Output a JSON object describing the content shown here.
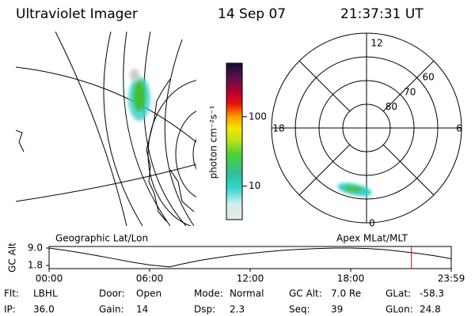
{
  "header": {
    "title": "Ultraviolet Imager",
    "date": "14 Sep 07",
    "time": "21:37:31 UT"
  },
  "colorbar": {
    "label": "photon cm⁻²s⁻¹",
    "log": true,
    "lim": [
      3.3,
      590
    ],
    "ticks": [
      10,
      100
    ]
  },
  "polar_map": {
    "lat_lim": [
      50,
      90
    ],
    "rings": [
      60,
      70,
      80
    ],
    "mlt_labels": [
      "12",
      "18",
      "6",
      "0"
    ]
  },
  "altitude_plot": {
    "left_label": "Geographic Lat/Lon",
    "right_label": "Apex MLat/MLT",
    "y_label": "GC Alt",
    "ylim": [
      0.5,
      9.65
    ],
    "yticks": [
      {
        "value": 9,
        "label": "9.0"
      },
      1.8
    ],
    "xlim": [
      0,
      24
    ],
    "xticks": [
      {
        "value": 0,
        "label": "00:00"
      },
      {
        "value": 6,
        "label": "06:00"
      },
      {
        "value": 12,
        "label": "12:00"
      },
      {
        "value": 18,
        "label": "18:00"
      },
      {
        "value": 24,
        "label": "23:59"
      }
    ],
    "x": [
      0,
      1,
      2,
      3,
      4,
      5,
      6,
      7.2,
      8,
      9,
      10,
      11,
      12,
      13,
      14,
      15,
      16,
      17,
      18,
      19,
      20,
      21,
      22,
      23,
      24
    ],
    "values": [
      9.0,
      8.0,
      6.9,
      5.7,
      4.4,
      3.1,
      2.0,
      1.2,
      2.5,
      3.9,
      5.0,
      6.0,
      6.8,
      7.5,
      8.1,
      8.5,
      8.8,
      9.0,
      9.0,
      8.8,
      8.4,
      7.6,
      6.8,
      5.8,
      4.6
    ],
    "cursor": 21.625,
    "cursor_color": "#e00000"
  },
  "info": [
    [
      {
        "label": "Flt:",
        "value": "LBHL"
      },
      {
        "label": "Door:",
        "value": "Open"
      },
      {
        "label": "Mode:",
        "value": "Normal"
      },
      {
        "label": "GC Alt:",
        "value": "7.0 Re"
      },
      {
        "label": "GLat:",
        "value": "-58.3"
      }
    ],
    [
      {
        "label": "IP:",
        "value": "36.0"
      },
      {
        "label": "Gain:",
        "value": "14"
      },
      {
        "label": "Dsp:",
        "value": "2.3"
      },
      {
        "label": "Seq:",
        "value": "39"
      },
      {
        "label": "GLon:",
        "value": "24.8"
      }
    ]
  ]
}
